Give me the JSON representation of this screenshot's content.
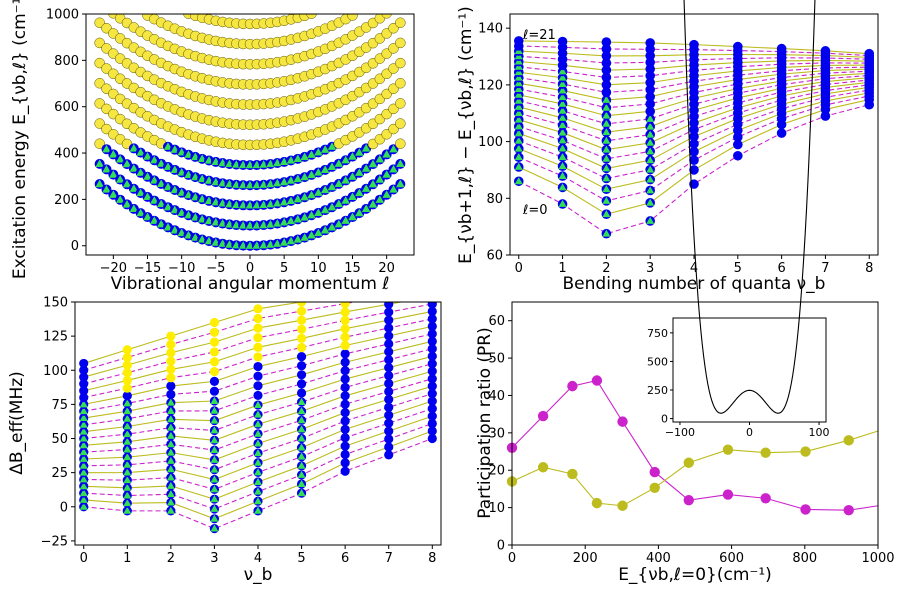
{
  "chart_data": [
    {
      "id": "p1",
      "type": "scatter",
      "xlabel": "Vibrational angular momentum ℓ",
      "ylabel": "Excitation energy E_{νb,ℓ} (cm⁻¹)",
      "xlim": [
        -24,
        24
      ],
      "ylim": [
        -40,
        1000
      ],
      "xticks": [
        -20,
        -15,
        -10,
        -5,
        0,
        5,
        10,
        15,
        20
      ],
      "yticks": [
        0,
        200,
        400,
        600,
        800,
        1000
      ],
      "model": {
        "omega": 87,
        "g": 0.55,
        "nmax": 11,
        "lmax": 22,
        "ymax": 1000
      },
      "colors": {
        "line": "#00008b",
        "circle_fill": "#0000ee",
        "yellow": "#f5e642",
        "triangle": "#33dd55"
      }
    },
    {
      "id": "p2",
      "type": "line",
      "xlabel": "Bending number of quanta ν_b",
      "ylabel": "E_{νb+1,ℓ} − E_{νb,ℓ} (cm⁻¹)",
      "xlim": [
        -0.2,
        8.2
      ],
      "ylim": [
        60,
        145
      ],
      "xticks": [
        0,
        1,
        2,
        3,
        4,
        5,
        6,
        7,
        8
      ],
      "yticks": [
        60,
        80,
        100,
        120,
        140
      ],
      "annotations": {
        "top": "ℓ=21",
        "bottom": "ℓ=0"
      },
      "nseries": 22,
      "l0_values": [
        86,
        78,
        67.5,
        72,
        85,
        95,
        103,
        109,
        113
      ],
      "top_values": [
        135.5,
        135.3,
        135.1,
        134.8,
        134.2,
        133.5,
        132.8,
        132.0,
        131.0
      ],
      "colors": {
        "yellow_line": "#bcbc1e",
        "magenta_line": "#cc22cc",
        "marker": "#0000ee",
        "triangle": "#33dd55"
      }
    },
    {
      "id": "p3",
      "type": "line",
      "xlabel": "ν_b",
      "ylabel": "ΔB_eff(MHz)",
      "xlim": [
        -0.2,
        8.2
      ],
      "ylim": [
        -28,
        150
      ],
      "xticks": [
        0,
        1,
        2,
        3,
        4,
        5,
        6,
        7,
        8
      ],
      "yticks": [
        -25,
        0,
        25,
        50,
        75,
        100,
        125,
        150
      ],
      "nseries": 22,
      "low_values": [
        0,
        -3,
        -3,
        -16,
        -3,
        10,
        26,
        38,
        50
      ],
      "top_values": [
        105,
        115,
        125,
        135,
        145,
        150,
        155,
        160,
        165
      ],
      "colors": {
        "yellow_line": "#bcbc1e",
        "magenta_line": "#cc22cc",
        "marker": "#0000ee",
        "triangle": "#33dd55",
        "yellow_marker": "#ffee00"
      }
    },
    {
      "id": "p4",
      "type": "line",
      "xlabel": "E_{νb,ℓ=0}(cm⁻¹)",
      "ylabel": "Participation ratio (PR)",
      "xlim": [
        0,
        1000
      ],
      "ylim": [
        0,
        65
      ],
      "xticks": [
        0,
        200,
        400,
        600,
        800,
        1000
      ],
      "yticks": [
        0,
        10,
        20,
        30,
        40,
        50,
        60
      ],
      "series": [
        {
          "color": "#cc22cc",
          "x": [
            0,
            85,
            165,
            232,
            302,
            390,
            483,
            590,
            693,
            802,
            920,
            1000
          ],
          "y": [
            26,
            34.5,
            42.5,
            44,
            33,
            19.5,
            12,
            13.5,
            12.5,
            9.5,
            9.3,
            10.5
          ]
        },
        {
          "color": "#bcbc1e",
          "x": [
            0,
            85,
            165,
            232,
            302,
            390,
            483,
            590,
            693,
            802,
            920,
            1000
          ],
          "y": [
            17,
            20.8,
            19,
            11.2,
            10.5,
            15.3,
            22,
            25.5,
            24.7,
            25,
            28,
            30.5
          ]
        }
      ],
      "inset": {
        "type": "line",
        "xlim": [
          -110,
          110
        ],
        "ylim": [
          -30,
          880
        ],
        "xticks": [
          -100,
          0,
          100
        ],
        "yticks": [
          0,
          250,
          500,
          750
        ],
        "potential": {
          "a": 0.2376,
          "b": 7.04e-05,
          "c": 247,
          "xmin": -100,
          "xmax": 100
        }
      }
    }
  ]
}
